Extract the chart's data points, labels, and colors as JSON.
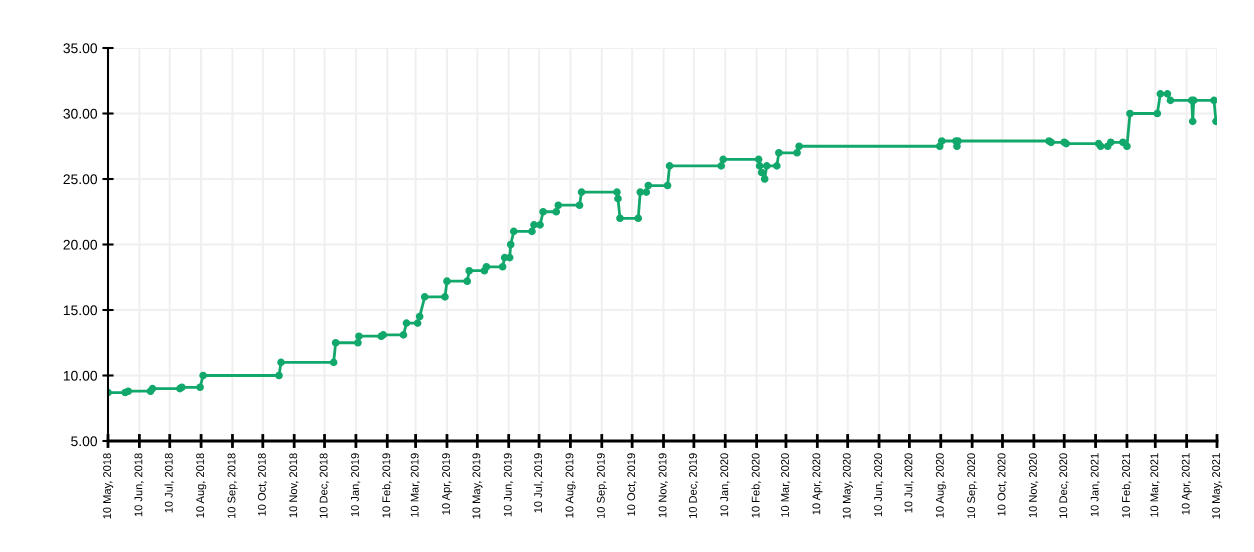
{
  "chart_data": {
    "type": "line",
    "marker": "circle",
    "line_style": "solid",
    "grid": true,
    "x": [
      "2018-05-10",
      "2018-05-27",
      "2018-05-30",
      "2018-06-21",
      "2018-06-23",
      "2018-07-20",
      "2018-07-22",
      "2018-08-09",
      "2018-08-12",
      "2018-10-26",
      "2018-10-28",
      "2018-12-19",
      "2018-12-21",
      "2019-01-12",
      "2019-01-13",
      "2019-02-04",
      "2019-02-06",
      "2019-02-26",
      "2019-03-01",
      "2019-03-12",
      "2019-03-14",
      "2019-03-19",
      "2019-04-08",
      "2019-04-10",
      "2019-04-30",
      "2019-05-02",
      "2019-05-17",
      "2019-05-19",
      "2019-06-04",
      "2019-06-06",
      "2019-06-11",
      "2019-06-12",
      "2019-06-15",
      "2019-07-03",
      "2019-07-05",
      "2019-07-11",
      "2019-07-14",
      "2019-07-27",
      "2019-07-29",
      "2019-08-19",
      "2019-08-21",
      "2019-09-25",
      "2019-09-26",
      "2019-09-28",
      "2019-10-16",
      "2019-10-18",
      "2019-10-24",
      "2019-10-26",
      "2019-11-14",
      "2019-11-16",
      "2020-01-06",
      "2020-01-08",
      "2020-02-12",
      "2020-02-13",
      "2020-02-15",
      "2020-02-18",
      "2020-02-20",
      "2020-03-01",
      "2020-03-03",
      "2020-03-21",
      "2020-03-23",
      "2020-08-09",
      "2020-08-11",
      "2020-08-25",
      "2020-08-26",
      "2020-08-27",
      "2020-11-25",
      "2020-11-27",
      "2020-12-10",
      "2020-12-12",
      "2021-01-13",
      "2021-01-15",
      "2021-01-22",
      "2021-01-25",
      "2021-02-06",
      "2021-02-10",
      "2021-02-13",
      "2021-03-12",
      "2021-03-15",
      "2021-03-22",
      "2021-03-25",
      "2021-04-15",
      "2021-04-16",
      "2021-04-17",
      "2021-05-07",
      "2021-05-09"
    ],
    "series": [
      {
        "color": "#12a86c",
        "values": [
          8.7,
          8.7,
          8.8,
          8.8,
          9.0,
          9.0,
          9.1,
          9.1,
          10.0,
          10.0,
          11.0,
          11.0,
          12.5,
          12.5,
          13.0,
          13.0,
          13.1,
          13.1,
          14.0,
          14.0,
          14.5,
          16.0,
          16.0,
          17.2,
          17.2,
          18.0,
          18.0,
          18.3,
          18.3,
          19.0,
          19.0,
          20.0,
          21.0,
          21.0,
          21.5,
          21.5,
          22.5,
          22.5,
          23.0,
          23.0,
          24.0,
          24.0,
          23.5,
          22.0,
          22.0,
          24.0,
          24.0,
          24.5,
          24.5,
          26.0,
          26.0,
          26.5,
          26.5,
          26.0,
          25.5,
          25.0,
          26.0,
          26.0,
          27.0,
          27.0,
          27.5,
          27.5,
          27.9,
          27.9,
          27.5,
          27.9,
          27.9,
          27.8,
          27.8,
          27.7,
          27.7,
          27.5,
          27.5,
          27.8,
          27.8,
          27.5,
          30.0,
          30.0,
          31.5,
          31.5,
          31.0,
          31.0,
          29.4,
          31.0,
          31.0,
          29.4
        ]
      }
    ],
    "ylim": [
      5,
      35
    ],
    "yticks": [
      {
        "value": 5,
        "label": "5.00"
      },
      {
        "value": 10,
        "label": "10.00"
      },
      {
        "value": 15,
        "label": "15.00"
      },
      {
        "value": 20,
        "label": "20.00"
      },
      {
        "value": 25,
        "label": "25.00"
      },
      {
        "value": 30,
        "label": "30.00"
      },
      {
        "value": 35,
        "label": "35.00"
      }
    ],
    "xlim": [
      "2018-05-10",
      "2021-05-10"
    ],
    "xticks": [
      {
        "value": "2018-05-10",
        "label": "10 May, 2018"
      },
      {
        "value": "2018-06-10",
        "label": "10 Jun, 2018"
      },
      {
        "value": "2018-07-10",
        "label": "10 Jul, 2018"
      },
      {
        "value": "2018-08-10",
        "label": "10 Aug, 2018"
      },
      {
        "value": "2018-09-10",
        "label": "10 Sep, 2018"
      },
      {
        "value": "2018-10-10",
        "label": "10 Oct, 2018"
      },
      {
        "value": "2018-11-10",
        "label": "10 Nov, 2018"
      },
      {
        "value": "2018-12-10",
        "label": "10 Dec, 2018"
      },
      {
        "value": "2019-01-10",
        "label": "10 Jan, 2019"
      },
      {
        "value": "2019-02-10",
        "label": "10 Feb, 2019"
      },
      {
        "value": "2019-03-10",
        "label": "10 Mar, 2019"
      },
      {
        "value": "2019-04-10",
        "label": "10 Apr, 2019"
      },
      {
        "value": "2019-05-10",
        "label": "10 May, 2019"
      },
      {
        "value": "2019-06-10",
        "label": "10 Jun, 2019"
      },
      {
        "value": "2019-07-10",
        "label": "10 Jul, 2019"
      },
      {
        "value": "2019-08-10",
        "label": "10 Aug, 2019"
      },
      {
        "value": "2019-09-10",
        "label": "10 Sep, 2019"
      },
      {
        "value": "2019-10-10",
        "label": "10 Oct, 2019"
      },
      {
        "value": "2019-11-10",
        "label": "10 Nov, 2019"
      },
      {
        "value": "2019-12-10",
        "label": "10 Dec, 2019"
      },
      {
        "value": "2020-01-10",
        "label": "10 Jan, 2020"
      },
      {
        "value": "2020-02-10",
        "label": "10 Feb, 2020"
      },
      {
        "value": "2020-03-10",
        "label": "10 Mar, 2020"
      },
      {
        "value": "2020-04-10",
        "label": "10 Apr, 2020"
      },
      {
        "value": "2020-05-10",
        "label": "10 May, 2020"
      },
      {
        "value": "2020-06-10",
        "label": "10 Jun, 2020"
      },
      {
        "value": "2020-07-10",
        "label": "10 Jul, 2020"
      },
      {
        "value": "2020-08-10",
        "label": "10 Aug, 2020"
      },
      {
        "value": "2020-09-10",
        "label": "10 Sep, 2020"
      },
      {
        "value": "2020-10-10",
        "label": "10 Oct, 2020"
      },
      {
        "value": "2020-11-10",
        "label": "10 Nov, 2020"
      },
      {
        "value": "2020-12-10",
        "label": "10 Dec, 2020"
      },
      {
        "value": "2021-01-10",
        "label": "10 Jan, 2021"
      },
      {
        "value": "2021-02-10",
        "label": "10 Feb, 2021"
      },
      {
        "value": "2021-03-10",
        "label": "10 Mar, 2021"
      },
      {
        "value": "2021-04-10",
        "label": "10 Apr, 2021"
      },
      {
        "value": "2021-05-10",
        "label": "10 May, 2021"
      }
    ]
  }
}
